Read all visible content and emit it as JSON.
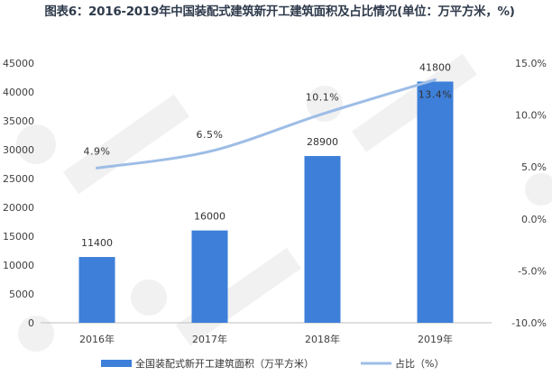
{
  "chart_data": {
    "type": "bar",
    "title": "图表6：2016-2019年中国装配式建筑新开工建筑面积及占比情况(单位：万平方米，%)",
    "categories": [
      "2016年",
      "2017年",
      "2018年",
      "2019年"
    ],
    "series": [
      {
        "name": "全国装配式新开工建筑面积（万平方米）",
        "type": "bar",
        "axis": "left",
        "color": "#3d7fd9",
        "values": [
          11400,
          16000,
          28900,
          41800
        ],
        "labels": [
          "11400",
          "16000",
          "28900",
          "41800"
        ]
      },
      {
        "name": "占比（%）",
        "type": "line",
        "axis": "right",
        "color": "#9dbde6",
        "values": [
          4.9,
          6.5,
          10.1,
          13.4
        ],
        "labels": [
          "4.9%",
          "6.5%",
          "10.1%",
          "13.4%"
        ]
      }
    ],
    "ylim": [
      0,
      45000
    ],
    "y_ticks": [
      "0",
      "5000",
      "10000",
      "15000",
      "20000",
      "25000",
      "30000",
      "35000",
      "40000",
      "45000"
    ],
    "y2lim": [
      -10,
      15
    ],
    "y2_ticks": [
      "-10.0%",
      "-5.0%",
      "0.0%",
      "5.0%",
      "10.0%",
      "15.0%"
    ],
    "grid": false,
    "legend_position": "bottom"
  }
}
